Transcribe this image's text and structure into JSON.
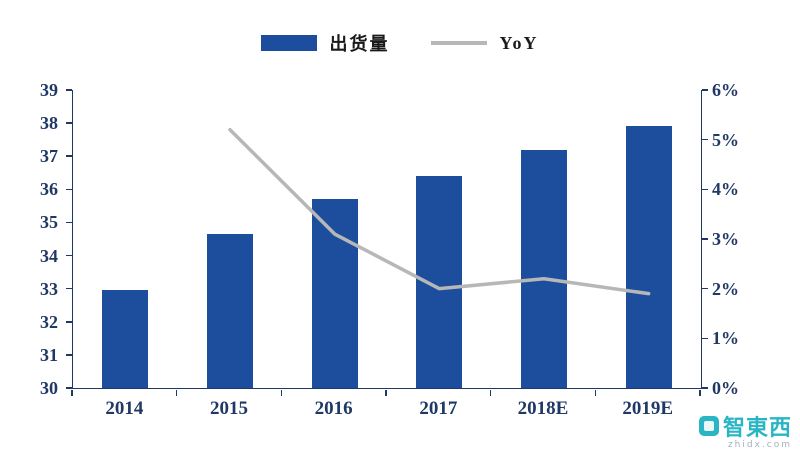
{
  "legend": {
    "items": [
      {
        "label": "出货量",
        "swatch": "bar"
      },
      {
        "label": "YoY",
        "swatch": "line"
      }
    ]
  },
  "watermark": {
    "brand": "智東西",
    "domain": "zhidx.com"
  },
  "chart_data": {
    "type": "bar",
    "title": "",
    "categories": [
      "2014",
      "2015",
      "2016",
      "2017",
      "2018E",
      "2019E"
    ],
    "series": [
      {
        "name": "出货量",
        "type": "bar",
        "axis": "left",
        "values": [
          32.95,
          34.65,
          35.7,
          36.4,
          37.2,
          37.9
        ]
      },
      {
        "name": "YoY",
        "type": "line",
        "axis": "right",
        "values": [
          null,
          5.2,
          3.1,
          2.0,
          2.2,
          1.9
        ]
      }
    ],
    "left_axis": {
      "min": 30,
      "max": 39,
      "step": 1,
      "labels": [
        "30",
        "31",
        "32",
        "33",
        "34",
        "35",
        "36",
        "37",
        "38",
        "39"
      ]
    },
    "right_axis": {
      "min": 0,
      "max": 6,
      "step": 1,
      "suffix": "%",
      "labels": [
        "0%",
        "1%",
        "2%",
        "3%",
        "4%",
        "5%",
        "6%"
      ]
    },
    "legend_position": "top",
    "grid": false,
    "colors": {
      "bar": "#1C4E9D",
      "line": "#B7B7B7",
      "axis_text": "#1F3864",
      "axis_line": "#1F3864"
    }
  }
}
